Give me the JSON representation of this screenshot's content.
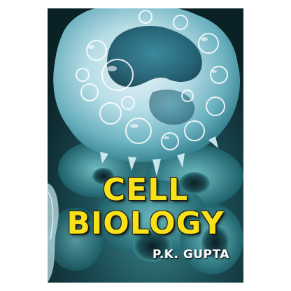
{
  "book": {
    "title_line1": "CELL",
    "title_line2": "BIOLOGY",
    "author": "P.K. GUPTA"
  },
  "colors": {
    "title": "#f7e21a",
    "author": "#ffffff",
    "background_teal": "#1f5f66",
    "cell_highlight": "#d9f2f7"
  },
  "image": {
    "subject": "translucent white blood cell on teal microscopic background"
  }
}
